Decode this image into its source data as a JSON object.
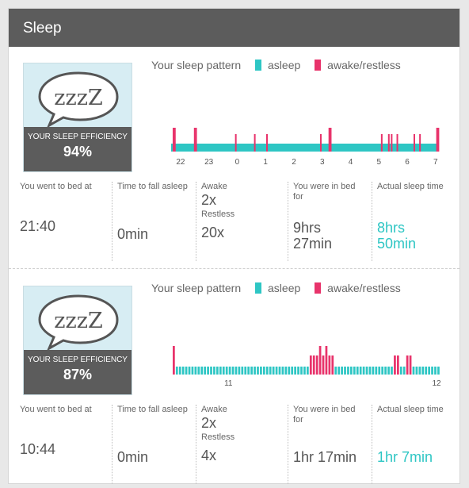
{
  "header": {
    "title": "Sleep"
  },
  "colors": {
    "asleep": "#2ec6c4",
    "awake": "#e8336b",
    "header_bg": "#5c5c5c",
    "card_bg": "#d7edf3"
  },
  "records": [
    {
      "efficiency_label": "YOUR SLEEP EFFICIENCY",
      "efficiency_value": "94%",
      "bubble_text": "zzzZ",
      "legend": {
        "title": "Your sleep pattern",
        "asleep": "asleep",
        "awake": "awake/restless"
      },
      "chart_data": {
        "type": "bar",
        "x_ticks": [
          "22",
          "23",
          "0",
          "1",
          "2",
          "3",
          "4",
          "5",
          "6",
          "7"
        ],
        "x_unit": "hour of day",
        "x_range": [
          21.667,
          7.117
        ],
        "asleep_segments": [
          [
            21.667,
            7.117
          ]
        ],
        "awake_marks": [
          {
            "t": 21.75,
            "level": "awake"
          },
          {
            "t": 21.8,
            "level": "awake"
          },
          {
            "t": 22.5,
            "level": "awake"
          },
          {
            "t": 22.55,
            "level": "awake"
          },
          {
            "t": 23.95,
            "level": "restless"
          },
          {
            "t": 0.62,
            "level": "restless"
          },
          {
            "t": 1.05,
            "level": "restless"
          },
          {
            "t": 2.95,
            "level": "restless"
          },
          {
            "t": 3.25,
            "level": "awake"
          },
          {
            "t": 3.3,
            "level": "awake"
          },
          {
            "t": 5.1,
            "level": "restless"
          },
          {
            "t": 5.35,
            "level": "restless"
          },
          {
            "t": 5.45,
            "level": "restless"
          },
          {
            "t": 5.65,
            "level": "restless"
          },
          {
            "t": 6.25,
            "level": "restless"
          },
          {
            "t": 6.45,
            "level": "restless"
          },
          {
            "t": 7.05,
            "level": "awake"
          },
          {
            "t": 7.1,
            "level": "awake"
          }
        ]
      },
      "stats": {
        "bed_label": "You went to bed at",
        "bed_value": "21:40",
        "fall_label": "Time to fall asleep",
        "fall_value": "0min",
        "awake_label": "Awake",
        "awake_value": "2x",
        "restless_label": "Restless",
        "restless_value": "20x",
        "inbed_label": "You were in bed for",
        "inbed_value_1": "9hrs",
        "inbed_value_2": "27min",
        "actual_label": "Actual sleep time",
        "actual_value_1": "8hrs",
        "actual_value_2": "50min"
      }
    },
    {
      "efficiency_label": "YOUR SLEEP EFFICIENCY",
      "efficiency_value": "87%",
      "bubble_text": "zzzZ",
      "legend": {
        "title": "Your sleep pattern",
        "asleep": "asleep",
        "awake": "awake/restless"
      },
      "chart_data": {
        "type": "bar",
        "x_ticks": [
          "11",
          "12"
        ],
        "x_unit": "hour of day",
        "x_range": [
          10.733,
          12.017
        ],
        "minute_states": [
          "awake",
          "asleep",
          "asleep",
          "asleep",
          "asleep",
          "asleep",
          "asleep",
          "asleep",
          "asleep",
          "asleep",
          "asleep",
          "asleep",
          "asleep",
          "asleep",
          "asleep",
          "asleep",
          "asleep",
          "asleep",
          "asleep",
          "asleep",
          "asleep",
          "asleep",
          "asleep",
          "asleep",
          "asleep",
          "asleep",
          "asleep",
          "asleep",
          "asleep",
          "asleep",
          "asleep",
          "asleep",
          "asleep",
          "asleep",
          "asleep",
          "asleep",
          "asleep",
          "asleep",
          "asleep",
          "asleep",
          "asleep",
          "asleep",
          "asleep",
          "asleep",
          "restless",
          "restless",
          "restless",
          "awake",
          "restless",
          "awake",
          "restless",
          "restless",
          "asleep",
          "asleep",
          "asleep",
          "asleep",
          "asleep",
          "asleep",
          "asleep",
          "asleep",
          "asleep",
          "asleep",
          "asleep",
          "asleep",
          "asleep",
          "asleep",
          "asleep",
          "asleep",
          "asleep",
          "asleep",
          "asleep",
          "restless",
          "restless",
          "asleep",
          "asleep",
          "restless",
          "restless",
          "asleep",
          "asleep",
          "asleep",
          "asleep",
          "asleep",
          "asleep",
          "asleep",
          "asleep",
          "asleep"
        ]
      },
      "stats": {
        "bed_label": "You went to bed at",
        "bed_value": "10:44",
        "fall_label": "Time to fall asleep",
        "fall_value": "0min",
        "awake_label": "Awake",
        "awake_value": "2x",
        "restless_label": "Restless",
        "restless_value": "4x",
        "inbed_label": "You were in bed for",
        "inbed_value_1": "1hr 17min",
        "actual_label": "Actual sleep time",
        "actual_value_1": "1hr 7min"
      }
    }
  ]
}
